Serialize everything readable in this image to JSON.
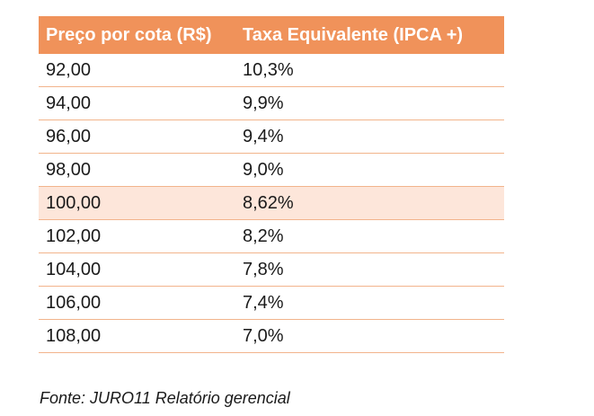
{
  "table": {
    "headers": [
      "Preço por cota (R$)",
      "Taxa Equivalente (IPCA +)"
    ],
    "rows": [
      [
        "92,00",
        "10,3%"
      ],
      [
        "94,00",
        "9,9%"
      ],
      [
        "96,00",
        "9,4%"
      ],
      [
        "98,00",
        "9,0%"
      ],
      [
        "100,00",
        "8,62%"
      ],
      [
        "102,00",
        "8,2%"
      ],
      [
        "104,00",
        "7,8%"
      ],
      [
        "106,00",
        "7,4%"
      ],
      [
        "108,00",
        "7,0%"
      ]
    ],
    "highlighted_row_index": 4,
    "header_color": "#f0925a",
    "highlight_color": "#fde6da",
    "row_border_color": "#f2b48c"
  },
  "caption": "Fonte: JURO11 Relatório gerencial"
}
